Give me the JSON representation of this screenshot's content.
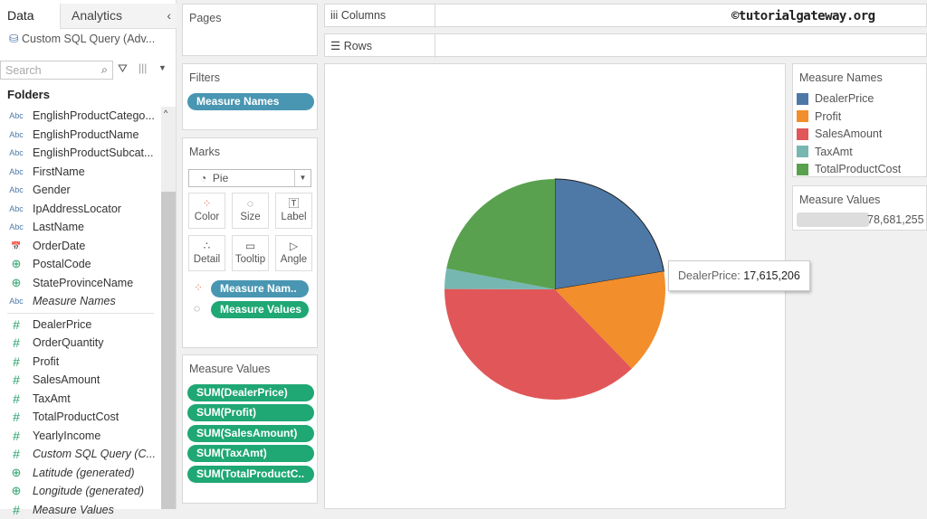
{
  "left_panel": {
    "tabs": [
      "Data",
      "Analytics"
    ],
    "data_source": "Custom SQL Query (Adv...",
    "search_placeholder": "Search",
    "folders_label": "Folders",
    "dimensions": [
      {
        "type": "abc",
        "name": "EnglishProductCatego..."
      },
      {
        "type": "abc",
        "name": "EnglishProductName"
      },
      {
        "type": "abc",
        "name": "EnglishProductSubcat..."
      },
      {
        "type": "abc",
        "name": "FirstName"
      },
      {
        "type": "abc",
        "name": "Gender"
      },
      {
        "type": "abc",
        "name": "IpAddressLocator"
      },
      {
        "type": "abc",
        "name": "LastName"
      },
      {
        "type": "date",
        "name": "OrderDate"
      },
      {
        "type": "geo",
        "name": "PostalCode"
      },
      {
        "type": "geo",
        "name": "StateProvinceName"
      },
      {
        "type": "abc",
        "name": "Measure Names",
        "italic": true
      }
    ],
    "measures": [
      {
        "type": "num",
        "name": "DealerPrice"
      },
      {
        "type": "num",
        "name": "OrderQuantity"
      },
      {
        "type": "num",
        "name": "Profit"
      },
      {
        "type": "num",
        "name": "SalesAmount"
      },
      {
        "type": "num",
        "name": "TaxAmt"
      },
      {
        "type": "num",
        "name": "TotalProductCost"
      },
      {
        "type": "num",
        "name": "YearlyIncome"
      },
      {
        "type": "num",
        "name": "Custom SQL Query (C...",
        "italic": true
      },
      {
        "type": "geo",
        "name": "Latitude (generated)",
        "italic": true
      },
      {
        "type": "geo",
        "name": "Longitude (generated)",
        "italic": true
      },
      {
        "type": "num",
        "name": "Measure Values",
        "italic": true
      }
    ]
  },
  "cards": {
    "pages": "Pages",
    "filters": {
      "title": "Filters",
      "pills": [
        "Measure Names"
      ]
    },
    "marks": {
      "title": "Marks",
      "type": "Pie",
      "buttons": [
        "Color",
        "Size",
        "Label",
        "Detail",
        "Tooltip",
        "Angle"
      ],
      "pills": [
        {
          "icon": "color-icon",
          "label": "Measure Nam.."
        },
        {
          "icon": "size-icon",
          "label": "Measure Values"
        }
      ]
    },
    "measure_values": {
      "title": "Measure Values",
      "pills": [
        "SUM(DealerPrice)",
        "SUM(Profit)",
        "SUM(SalesAmount)",
        "SUM(TaxAmt)",
        "SUM(TotalProductC.."
      ]
    }
  },
  "shelves": {
    "columns": "Columns",
    "rows": "Rows"
  },
  "watermark": "©tutorialgateway.org",
  "tooltip": {
    "label": "DealerPrice:",
    "value": "17,615,206"
  },
  "legend": {
    "title": "Measure Names",
    "items": [
      {
        "name": "DealerPrice",
        "color": "#4e79a7"
      },
      {
        "name": "Profit",
        "color": "#f28e2b"
      },
      {
        "name": "SalesAmount",
        "color": "#e15759"
      },
      {
        "name": "TaxAmt",
        "color": "#76b7b2"
      },
      {
        "name": "TotalProductCost",
        "color": "#59a14f"
      }
    ]
  },
  "size_legend": {
    "title": "Measure Values",
    "max": "78,681,255"
  },
  "chart_data": {
    "type": "pie",
    "categories": [
      "DealerPrice",
      "Profit",
      "SalesAmount",
      "TaxAmt",
      "TotalProductCost"
    ],
    "values": [
      17615206,
      12080884,
      29358677,
      2348694,
      17277793
    ],
    "colors": [
      "#4e79a7",
      "#f28e2b",
      "#e15759",
      "#76b7b2",
      "#59a14f"
    ]
  }
}
